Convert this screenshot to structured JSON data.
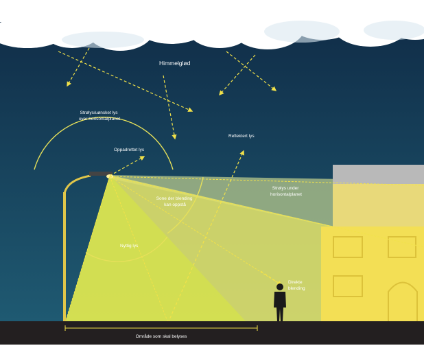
{
  "labels": {
    "sky_glow": "Himmelglød",
    "stray_light_line1": "Strølys/uønsket lys",
    "stray_light_line2": "over horisontalplanet",
    "upward_light": "Oppadrettet lys",
    "reflected_light": "Reflektert lys",
    "stray_below_line1": "Strølys under",
    "stray_below_line2": "horisontalplanet",
    "glare_zone_line1": "Sone der blending",
    "glare_zone_line2": "kan oppstå",
    "useful_light": "Nyttig lys",
    "direct_glare_line1": "Direkte",
    "direct_glare_line2": "blending",
    "area_to_light": "Område som skal belyses"
  },
  "colors": {
    "sky_top": "#0f2a45",
    "sky_bottom": "#1f5a72",
    "useful_light": "#dfe06a",
    "stray_light": "#b7c88c",
    "house": "#f3df55",
    "roof": "#b9b9b9",
    "ground": "#231f20",
    "arrow": "#f2e24a",
    "arc": "#e6e05a"
  }
}
